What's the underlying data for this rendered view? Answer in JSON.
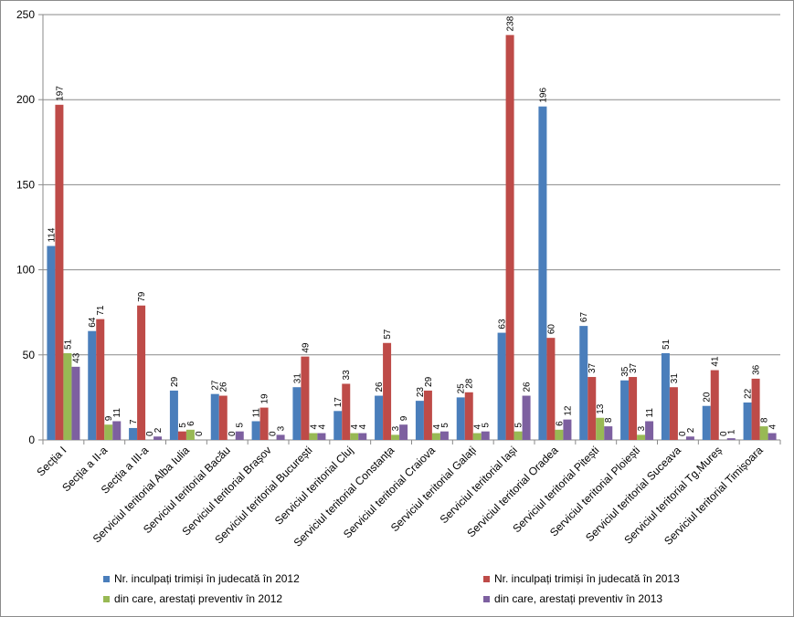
{
  "chart_data": {
    "type": "bar",
    "categories": [
      "Secția I",
      "Secția a II-a",
      "Secția a III-a",
      "Serviciul teritorial Alba Iulia",
      "Serviciul teritorial Bacău",
      "Serviciul teritorial Brașov",
      "Serviciul teritorial București",
      "Serviciul teritorial Cluj",
      "Serviciul teritorial Constanța",
      "Serviciul teritorial Craiova",
      "Serviciul teritorial Galați",
      "Serviciul teritorial Iași",
      "Serviciul teritorial Oradea",
      "Serviciul teritorial Pitești",
      "Serviciul teritorial Ploiești",
      "Serviciul teritorial Suceava",
      "Serviciul teritorial Tg.Mureș",
      "Serviciul teritorial Timișoara"
    ],
    "series": [
      {
        "name": "Nr. inculpați trimiși în judecată în 2012",
        "color": "#4a7ebb",
        "values": [
          114,
          64,
          7,
          29,
          27,
          11,
          31,
          17,
          26,
          23,
          25,
          63,
          196,
          67,
          35,
          51,
          20,
          22
        ]
      },
      {
        "name": "Nr. inculpați trimiși în judecată în 2013",
        "color": "#be4b48",
        "values": [
          197,
          71,
          79,
          5,
          26,
          19,
          49,
          33,
          57,
          29,
          28,
          238,
          60,
          37,
          37,
          31,
          41,
          36
        ]
      },
      {
        "name": "din care, arestați preventiv în 2012",
        "color": "#98b954",
        "values": [
          51,
          9,
          0,
          6,
          0,
          0,
          4,
          4,
          3,
          4,
          4,
          5,
          6,
          13,
          3,
          0,
          0,
          8
        ]
      },
      {
        "name": "din care, arestați preventiv în 2013",
        "color": "#7d60a0",
        "values": [
          43,
          11,
          2,
          0,
          5,
          3,
          4,
          4,
          9,
          5,
          5,
          26,
          12,
          8,
          11,
          2,
          1,
          4
        ]
      }
    ],
    "ylim": [
      0,
      250
    ],
    "yticks": [
      0,
      50,
      100,
      150,
      200,
      250
    ],
    "grid": true,
    "legend_position": "bottom"
  }
}
